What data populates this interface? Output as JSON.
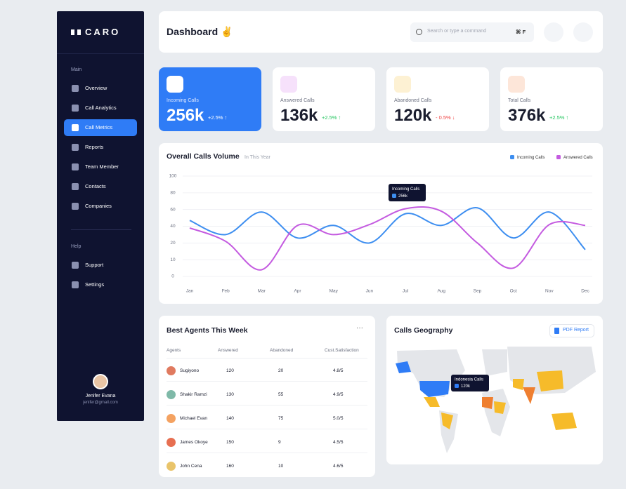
{
  "sidebar": {
    "logo": "CARO",
    "main_heading": "Main",
    "main_items": [
      "Overview",
      "Call Analytics",
      "Call Metrics",
      "Reports",
      "Team Member",
      "Contacts",
      "Companies"
    ],
    "active_item": "Call Metrics",
    "help_heading": "Help",
    "help_items": [
      "Support",
      "Settings"
    ],
    "user_name": "Jenifer Evana",
    "user_email": "jenifer@gmail.com"
  },
  "header": {
    "title": "Dashboard ✌",
    "search_placeholder": "Search or type a command",
    "shortcut": "⌘ F"
  },
  "stats": [
    {
      "label": "Incoming Calls",
      "value": "256k",
      "change": "+2.5% ↑",
      "trend": "up",
      "color": "#2f7cf6",
      "icon_bg": "#ffffff"
    },
    {
      "label": "Answered Calls",
      "value": "136k",
      "change": "+2.5% ↑",
      "trend": "up",
      "color": "#ffffff",
      "icon_bg": "#f6e1fb"
    },
    {
      "label": "Abandoned Calls",
      "value": "120k",
      "change": "- 0.5% ↓",
      "trend": "down",
      "color": "#ffffff",
      "icon_bg": "#fdf1d3"
    },
    {
      "label": "Total Calls",
      "value": "376k",
      "change": "+2.5% ↑",
      "trend": "up",
      "color": "#ffffff",
      "icon_bg": "#fde6d9"
    }
  ],
  "chart_data": {
    "type": "line",
    "title": "Overall Calls Volume",
    "filter": "In This Year",
    "categories": [
      "Jan",
      "Feb",
      "Mar",
      "Apr",
      "May",
      "Jun",
      "Jul",
      "Aug",
      "Sep",
      "Oct",
      "Nov",
      "Dec"
    ],
    "series": [
      {
        "name": "Incoming Calls",
        "color": "#3d8ef0",
        "values": [
          47,
          30,
          57,
          26,
          41,
          20,
          55,
          41,
          62,
          26,
          57,
          16
        ]
      },
      {
        "name": "Answered Calls",
        "color": "#c45be0",
        "values": [
          38,
          22,
          4,
          41,
          30,
          42,
          61,
          58,
          20,
          5,
          42,
          41
        ]
      }
    ],
    "ylim": [
      0,
      100
    ],
    "yticks": [
      0,
      10,
      20,
      40,
      60,
      80,
      100
    ],
    "grid": true,
    "legend": "top-right",
    "tooltip": {
      "label": "Incoming Calls",
      "value": "256k"
    }
  },
  "agents_table": {
    "title": "Best Agents This Week",
    "menu": "···",
    "columns": [
      "Agents",
      "Answered",
      "Abandoned",
      "Cust.Satisfaction"
    ],
    "rows": [
      [
        "Sugiyono",
        120,
        20,
        "4.8/5"
      ],
      [
        "Shakir Ramzi",
        130,
        55,
        "4.9/5"
      ],
      [
        "Michael Evan",
        140,
        75,
        "5.0/5"
      ],
      [
        "James Okoye",
        150,
        9,
        "4.5/5"
      ],
      [
        "John Cena",
        160,
        10,
        "4.6/5"
      ]
    ]
  },
  "geography": {
    "title": "Calls Geography",
    "button": "PDF Report",
    "tooltip": {
      "label": "Indonesia Calls",
      "value": "120k"
    }
  }
}
